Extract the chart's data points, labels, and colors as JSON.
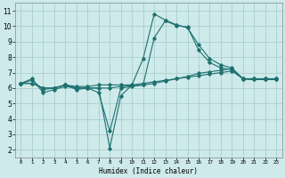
{
  "xlabel": "Humidex (Indice chaleur)",
  "ylabel": "",
  "xlim": [
    -0.5,
    23.5
  ],
  "ylim": [
    1.5,
    11.5
  ],
  "xticks": [
    0,
    1,
    2,
    3,
    4,
    5,
    6,
    7,
    8,
    9,
    10,
    11,
    12,
    13,
    14,
    15,
    16,
    17,
    18,
    19,
    20,
    21,
    22,
    23
  ],
  "yticks": [
    2,
    3,
    4,
    5,
    6,
    7,
    8,
    9,
    10,
    11
  ],
  "bg_color": "#ceeaea",
  "grid_color": "#aacece",
  "line_color": "#1e7070",
  "line1_x": [
    0,
    1,
    2,
    3,
    4,
    5,
    6,
    7,
    8,
    9,
    10,
    11,
    12,
    13,
    14,
    15,
    16,
    17,
    18,
    19,
    20,
    21,
    22,
    23
  ],
  "line1_y": [
    6.3,
    6.6,
    5.7,
    5.9,
    6.1,
    6.0,
    6.0,
    6.0,
    2.1,
    5.5,
    6.2,
    7.9,
    10.8,
    10.4,
    10.1,
    9.9,
    8.8,
    7.9,
    7.5,
    7.3,
    6.6,
    6.6,
    6.6,
    6.6
  ],
  "line2_x": [
    0,
    1,
    2,
    3,
    4,
    5,
    6,
    7,
    8,
    9,
    10,
    11,
    12,
    13,
    14,
    15,
    16,
    17,
    18,
    19,
    20,
    21,
    22,
    23
  ],
  "line2_y": [
    6.3,
    6.5,
    5.9,
    6.0,
    6.2,
    6.1,
    6.1,
    6.2,
    6.2,
    6.2,
    6.2,
    6.3,
    6.4,
    6.5,
    6.6,
    6.7,
    6.8,
    6.9,
    7.0,
    7.1,
    6.6,
    6.6,
    6.6,
    6.6
  ],
  "line3_x": [
    0,
    1,
    2,
    3,
    4,
    5,
    6,
    7,
    8,
    9,
    10,
    11,
    12,
    13,
    14,
    15,
    16,
    17,
    18,
    19,
    20,
    21,
    22,
    23
  ],
  "line3_y": [
    6.3,
    6.3,
    6.0,
    6.0,
    6.2,
    5.9,
    6.0,
    5.7,
    3.2,
    6.0,
    6.1,
    6.2,
    9.25,
    10.35,
    10.05,
    9.95,
    8.45,
    7.65,
    7.3,
    7.2,
    6.58,
    6.55,
    6.55,
    6.55
  ],
  "line4_x": [
    0,
    1,
    2,
    3,
    4,
    5,
    6,
    7,
    8,
    9,
    10,
    11,
    12,
    13,
    14,
    15,
    16,
    17,
    18,
    19,
    20,
    21,
    22,
    23
  ],
  "line4_y": [
    6.3,
    6.3,
    6.0,
    6.0,
    6.2,
    6.0,
    6.0,
    6.0,
    6.0,
    6.1,
    6.15,
    6.2,
    6.3,
    6.45,
    6.6,
    6.75,
    6.95,
    7.05,
    7.15,
    7.25,
    6.58,
    6.55,
    6.55,
    6.55
  ]
}
